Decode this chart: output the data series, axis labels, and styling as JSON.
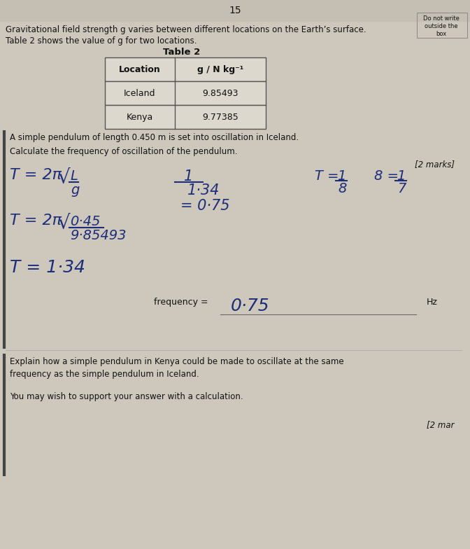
{
  "bg_color": "#cec8bc",
  "page_number": "15",
  "do_not_write": [
    "Do not write",
    "outside the",
    "box"
  ],
  "intro1": "Gravitational field strength g varies between different locations on the Earth’s surface.",
  "intro2": "Table 2 shows the value of g for two locations.",
  "table_title": "Table 2",
  "col_header1": "Location",
  "col_header2": "g / N kg⁻¹",
  "row1": [
    "Iceland",
    "9.85493"
  ],
  "row2": [
    "Kenya",
    "9.77385"
  ],
  "pendulum_text": "A simple pendulum of length 0.450 m is set into oscillation in Iceland.",
  "calc_text": "Calculate the frequency of oscillation of the pendulum.",
  "marks1": "[2 marks]",
  "freq_label": "frequency =",
  "freq_answer": "0·75",
  "hz": "Hz",
  "explain1": "Explain how a simple pendulum in Kenya could be made to oscillate at the same",
  "explain2": "frequency as the simple pendulum in Iceland.",
  "wish": "You may wish to support your answer with a calculation.",
  "marks2": "[2 mar",
  "text_color": "#111111",
  "hw_color": "#1c2d7a",
  "bar_color": "#444444",
  "table_bg": "#ddd8ce",
  "table_line": "#555555",
  "page_bg_top": "#c8c2b6",
  "separator_color": "#aaaaaa"
}
